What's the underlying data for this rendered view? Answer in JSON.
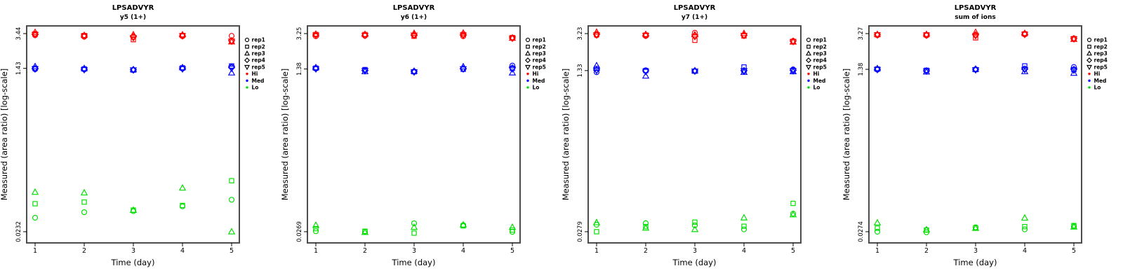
{
  "figure": {
    "y_axis_label": "Measured (area ratio) [log-scale]",
    "x_axis_label": "Time (day)",
    "x_tick_labels": [
      "1",
      "2",
      "3",
      "4",
      "5"
    ],
    "colors": {
      "hi": "#FF0000",
      "med": "#0000FF",
      "lo": "#00DD00",
      "box": "#4D4D4D",
      "text": "#000000"
    },
    "legend": {
      "position": "right",
      "rep_items": [
        {
          "label": "rep1",
          "symbol": "circle"
        },
        {
          "label": "rep2",
          "symbol": "square"
        },
        {
          "label": "rep3",
          "symbol": "triangle-up"
        },
        {
          "label": "rep4",
          "symbol": "diamond"
        },
        {
          "label": "rep5",
          "symbol": "triangle-down"
        }
      ],
      "level_items": [
        {
          "label": "Hi",
          "color_key": "hi"
        },
        {
          "label": "Med",
          "color_key": "med"
        },
        {
          "label": "Lo",
          "color_key": "lo"
        }
      ]
    }
  },
  "chart_data": [
    {
      "type": "scatter",
      "title": "LPSADVYR",
      "subtitle": "y5 (1+)",
      "xlabel": "Time (day)",
      "ylabel": "Measured (area ratio) [log-scale]",
      "x": [
        1,
        2,
        3,
        4,
        5
      ],
      "y_scale": "log",
      "grid": false,
      "y_ticks": [
        {
          "value": 3.44,
          "label": "3.44"
        },
        {
          "value": 1.43,
          "label": "1.43"
        },
        {
          "value": 0.0232,
          "label": "0.0232"
        }
      ],
      "series": [
        {
          "level": "Hi",
          "color_key": "hi",
          "reps": [
            {
              "rep": "rep1",
              "symbol": "circle",
              "values": [
                3.3,
                3.18,
                3.15,
                3.22,
                3.25
              ]
            },
            {
              "rep": "rep2",
              "symbol": "square",
              "values": [
                3.42,
                3.28,
                2.95,
                3.28,
                2.85
              ]
            },
            {
              "rep": "rep3",
              "symbol": "triangle-up",
              "values": [
                3.56,
                3.3,
                3.35,
                3.35,
                2.8
              ]
            },
            {
              "rep": "rep4",
              "symbol": "diamond",
              "values": [
                3.38,
                3.25,
                3.2,
                3.25,
                2.88
              ]
            },
            {
              "rep": "rep5",
              "symbol": "triangle-down",
              "values": [
                3.35,
                3.22,
                3.1,
                3.25,
                2.83
              ]
            }
          ]
        },
        {
          "level": "Med",
          "color_key": "med",
          "reps": [
            {
              "rep": "rep1",
              "symbol": "circle",
              "values": [
                1.4,
                1.39,
                1.38,
                1.42,
                1.5
              ]
            },
            {
              "rep": "rep2",
              "symbol": "square",
              "values": [
                1.43,
                1.41,
                1.37,
                1.45,
                1.52
              ]
            },
            {
              "rep": "rep3",
              "symbol": "triangle-up",
              "values": [
                1.5,
                1.43,
                1.39,
                1.46,
                1.28
              ]
            },
            {
              "rep": "rep4",
              "symbol": "diamond",
              "values": [
                1.42,
                1.4,
                1.38,
                1.43,
                1.46
              ]
            },
            {
              "rep": "rep5",
              "symbol": "triangle-down",
              "values": [
                1.41,
                1.38,
                1.37,
                1.41,
                1.43
              ]
            }
          ]
        },
        {
          "level": "Lo",
          "color_key": "lo",
          "reps": [
            {
              "rep": "rep1",
              "symbol": "circle",
              "values": [
                0.033,
                0.038,
                0.039,
                0.044,
                0.052
              ]
            },
            {
              "rep": "rep2",
              "symbol": "square",
              "values": [
                0.047,
                0.049,
                0.04,
                0.045,
                0.084
              ]
            },
            {
              "rep": "rep3",
              "symbol": "triangle-up",
              "values": [
                0.063,
                0.062,
                0.04,
                0.07,
                0.0232
              ]
            }
          ]
        }
      ]
    },
    {
      "type": "scatter",
      "title": "LPSADVYR",
      "subtitle": "y6 (1+)",
      "xlabel": "Time (day)",
      "ylabel": "Measured (area ratio) [log-scale]",
      "x": [
        1,
        2,
        3,
        4,
        5
      ],
      "y_scale": "log",
      "grid": false,
      "y_ticks": [
        {
          "value": 3.25,
          "label": "3.25"
        },
        {
          "value": 1.38,
          "label": "1.38"
        },
        {
          "value": 0.0269,
          "label": "0.0269"
        }
      ],
      "series": [
        {
          "level": "Hi",
          "color_key": "hi",
          "reps": [
            {
              "rep": "rep1",
              "symbol": "circle",
              "values": [
                3.05,
                3.08,
                3.1,
                3.05,
                2.9
              ]
            },
            {
              "rep": "rep2",
              "symbol": "square",
              "values": [
                3.18,
                3.18,
                3.05,
                3.18,
                2.95
              ]
            },
            {
              "rep": "rep3",
              "symbol": "triangle-up",
              "values": [
                3.22,
                3.2,
                3.28,
                3.3,
                2.92
              ]
            },
            {
              "rep": "rep4",
              "symbol": "diamond",
              "values": [
                3.15,
                3.12,
                3.15,
                3.15,
                2.93
              ]
            },
            {
              "rep": "rep5",
              "symbol": "triangle-down",
              "values": [
                3.12,
                3.1,
                3.12,
                3.12,
                2.9
              ]
            }
          ]
        },
        {
          "level": "Med",
          "color_key": "med",
          "reps": [
            {
              "rep": "rep1",
              "symbol": "circle",
              "values": [
                1.39,
                1.34,
                1.3,
                1.38,
                1.5
              ]
            },
            {
              "rep": "rep2",
              "symbol": "square",
              "values": [
                1.41,
                1.36,
                1.29,
                1.37,
                1.4
              ]
            },
            {
              "rep": "rep3",
              "symbol": "triangle-up",
              "values": [
                1.43,
                1.3,
                1.31,
                1.46,
                1.26
              ]
            },
            {
              "rep": "rep4",
              "symbol": "diamond",
              "values": [
                1.4,
                1.33,
                1.3,
                1.39,
                1.42
              ]
            },
            {
              "rep": "rep5",
              "symbol": "triangle-down",
              "values": [
                1.38,
                1.32,
                1.28,
                1.38,
                1.38
              ]
            }
          ]
        },
        {
          "level": "Lo",
          "color_key": "lo",
          "reps": [
            {
              "rep": "rep1",
              "symbol": "circle",
              "values": [
                0.0272,
                0.027,
                0.033,
                0.0315,
                0.0268
              ]
            },
            {
              "rep": "rep2",
              "symbol": "square",
              "values": [
                0.029,
                0.0272,
                0.026,
                0.031,
                0.028
              ]
            },
            {
              "rep": "rep3",
              "symbol": "triangle-up",
              "values": [
                0.0315,
                0.0265,
                0.03,
                0.0318,
                0.03
              ]
            }
          ]
        }
      ]
    },
    {
      "type": "scatter",
      "title": "LPSADVYR",
      "subtitle": "y7 (1+)",
      "xlabel": "Time (day)",
      "ylabel": "Measured (area ratio) [log-scale]",
      "x": [
        1,
        2,
        3,
        4,
        5
      ],
      "y_scale": "log",
      "grid": false,
      "y_ticks": [
        {
          "value": 3.23,
          "label": "3.23"
        },
        {
          "value": 1.33,
          "label": "1.33"
        },
        {
          "value": 0.0279,
          "label": "0.0279"
        }
      ],
      "series": [
        {
          "level": "Hi",
          "color_key": "hi",
          "reps": [
            {
              "rep": "rep1",
              "symbol": "circle",
              "values": [
                3.1,
                3.05,
                3.3,
                3.1,
                2.7
              ]
            },
            {
              "rep": "rep2",
              "symbol": "square",
              "values": [
                3.15,
                3.12,
                2.75,
                3.05,
                2.68
              ]
            },
            {
              "rep": "rep3",
              "symbol": "triangle-up",
              "values": [
                3.35,
                3.18,
                3.15,
                3.25,
                2.65
              ]
            },
            {
              "rep": "rep4",
              "symbol": "diamond",
              "values": [
                3.18,
                3.1,
                3.05,
                3.12,
                2.7
              ]
            },
            {
              "rep": "rep5",
              "symbol": "triangle-down",
              "values": [
                3.12,
                3.08,
                3.0,
                3.08,
                2.66
              ]
            }
          ]
        },
        {
          "level": "Med",
          "color_key": "med",
          "reps": [
            {
              "rep": "rep1",
              "symbol": "circle",
              "values": [
                1.28,
                1.34,
                1.32,
                1.31,
                1.37
              ]
            },
            {
              "rep": "rep2",
              "symbol": "square",
              "values": [
                1.4,
                1.33,
                1.31,
                1.45,
                1.33
              ]
            },
            {
              "rep": "rep3",
              "symbol": "triangle-up",
              "values": [
                1.5,
                1.17,
                1.33,
                1.28,
                1.3
              ]
            },
            {
              "rep": "rep4",
              "symbol": "diamond",
              "values": [
                1.35,
                1.32,
                1.32,
                1.33,
                1.34
              ]
            },
            {
              "rep": "rep5",
              "symbol": "triangle-down",
              "values": [
                1.33,
                1.3,
                1.31,
                1.32,
                1.32
              ]
            }
          ]
        },
        {
          "level": "Lo",
          "color_key": "lo",
          "reps": [
            {
              "rep": "rep1",
              "symbol": "circle",
              "values": [
                0.033,
                0.0342,
                0.0325,
                0.0295,
                0.043
              ]
            },
            {
              "rep": "rep2",
              "symbol": "square",
              "values": [
                0.0279,
                0.0315,
                0.0351,
                0.0318,
                0.055
              ]
            },
            {
              "rep": "rep3",
              "symbol": "triangle-up",
              "values": [
                0.0348,
                0.0305,
                0.0295,
                0.039,
                0.042
              ]
            }
          ]
        }
      ]
    },
    {
      "type": "scatter",
      "title": "LPSADVYR",
      "subtitle": "sum of ions",
      "xlabel": "Time (day)",
      "ylabel": "Measured (area ratio) [log-scale]",
      "x": [
        1,
        2,
        3,
        4,
        5
      ],
      "y_scale": "log",
      "grid": false,
      "y_ticks": [
        {
          "value": 3.27,
          "label": "3.27"
        },
        {
          "value": 1.38,
          "label": "1.38"
        },
        {
          "value": 0.0274,
          "label": "0.0274"
        }
      ],
      "series": [
        {
          "level": "Hi",
          "color_key": "hi",
          "reps": [
            {
              "rep": "rep1",
              "symbol": "circle",
              "values": [
                3.15,
                3.12,
                3.15,
                3.2,
                2.88
              ]
            },
            {
              "rep": "rep2",
              "symbol": "square",
              "values": [
                3.18,
                3.18,
                2.95,
                3.25,
                2.9
              ]
            },
            {
              "rep": "rep3",
              "symbol": "triangle-up",
              "values": [
                3.22,
                3.22,
                3.38,
                3.3,
                2.86
              ]
            },
            {
              "rep": "rep4",
              "symbol": "diamond",
              "values": [
                3.18,
                3.16,
                3.18,
                3.22,
                2.9
              ]
            },
            {
              "rep": "rep5",
              "symbol": "triangle-down",
              "values": [
                3.16,
                3.14,
                3.1,
                3.2,
                2.87
              ]
            }
          ]
        },
        {
          "level": "Med",
          "color_key": "med",
          "reps": [
            {
              "rep": "rep1",
              "symbol": "circle",
              "values": [
                1.37,
                1.33,
                1.38,
                1.4,
                1.46
              ]
            },
            {
              "rep": "rep2",
              "symbol": "square",
              "values": [
                1.39,
                1.35,
                1.37,
                1.5,
                1.37
              ]
            },
            {
              "rep": "rep3",
              "symbol": "triangle-up",
              "values": [
                1.41,
                1.3,
                1.39,
                1.31,
                1.26
              ]
            },
            {
              "rep": "rep4",
              "symbol": "diamond",
              "values": [
                1.38,
                1.33,
                1.38,
                1.39,
                1.38
              ]
            },
            {
              "rep": "rep5",
              "symbol": "triangle-down",
              "values": [
                1.37,
                1.32,
                1.36,
                1.37,
                1.35
              ]
            }
          ]
        },
        {
          "level": "Lo",
          "color_key": "lo",
          "reps": [
            {
              "rep": "rep1",
              "symbol": "circle",
              "values": [
                0.0274,
                0.027,
                0.0305,
                0.029,
                0.0312
              ]
            },
            {
              "rep": "rep2",
              "symbol": "square",
              "values": [
                0.0298,
                0.0285,
                0.03,
                0.031,
                0.0318
              ]
            },
            {
              "rep": "rep3",
              "symbol": "triangle-up",
              "values": [
                0.034,
                0.0288,
                0.0298,
                0.0382,
                0.0308
              ]
            }
          ]
        }
      ]
    }
  ]
}
